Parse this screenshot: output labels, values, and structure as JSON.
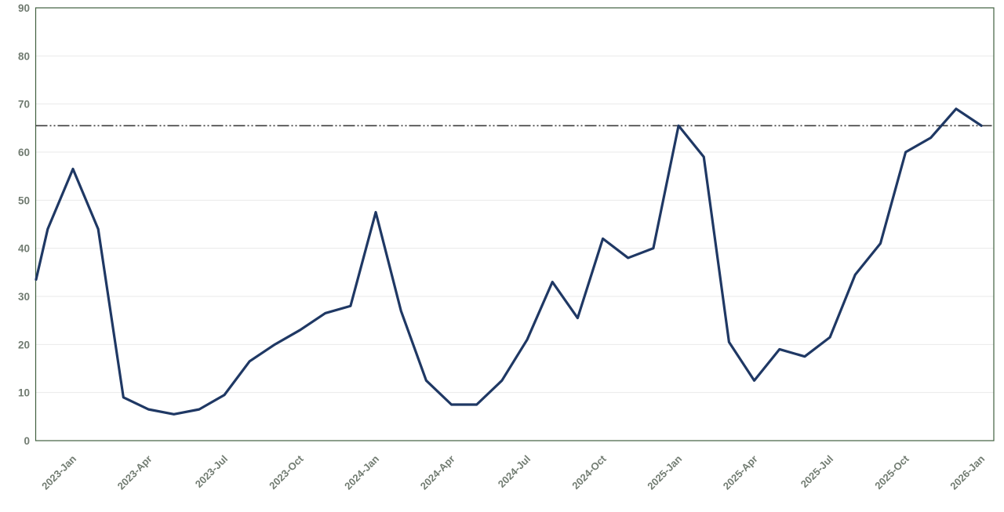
{
  "chart_data": {
    "type": "line",
    "title": "",
    "xlabel": "",
    "ylabel": "",
    "x": [
      "2022-Dec",
      "2023-Jan",
      "2023-Feb",
      "2023-Mar",
      "2023-Apr",
      "2023-May",
      "2023-Jun",
      "2023-Jul",
      "2023-Aug",
      "2023-Sep",
      "2023-Oct",
      "2023-Nov",
      "2023-Dec",
      "2024-Jan",
      "2024-Feb",
      "2024-Mar",
      "2024-Apr",
      "2024-May",
      "2024-Jun",
      "2024-Jul",
      "2024-Aug",
      "2024-Sep",
      "2024-Oct",
      "2024-Nov",
      "2024-Dec",
      "2025-Jan",
      "2025-Feb",
      "2025-Mar",
      "2025-Apr",
      "2025-May",
      "2025-Jun",
      "2025-Jul",
      "2025-Aug",
      "2025-Sep",
      "2025-Oct",
      "2025-Nov",
      "2025-Dec",
      "2026-Jan"
    ],
    "values": [
      44,
      56.5,
      44,
      9,
      6.5,
      5.5,
      6.5,
      9.5,
      16.5,
      20,
      23,
      26.5,
      28,
      47.5,
      27,
      12.5,
      7.5,
      7.5,
      12.5,
      21,
      33,
      25.5,
      42,
      38,
      40,
      65.5,
      59,
      20.5,
      12.5,
      19,
      17.5,
      21.5,
      34.5,
      41,
      60,
      63,
      69,
      65.5
    ],
    "clip_lead_value": 33.5,
    "reference_line": {
      "value": 65.5,
      "style": "dash-dot-dot"
    },
    "ylim": [
      0,
      90
    ],
    "y_ticks": [
      0,
      10,
      20,
      30,
      40,
      50,
      60,
      70,
      80,
      90
    ],
    "x_tick_labels": [
      "2023-Jan",
      "2023-Apr",
      "2023-Jul",
      "2023-Oct",
      "2024-Jan",
      "2024-Apr",
      "2024-Jul",
      "2024-Oct",
      "2025-Jan",
      "2025-Apr",
      "2025-Jul",
      "2025-Oct",
      "2026-Jan"
    ],
    "x_tick_step_months": 3,
    "grid": true,
    "legend": "none",
    "colors": {
      "series": "#1f3864",
      "plot_border": "#41603f",
      "gridline": "#e9e9e9",
      "reference_line": "#3c3c3c",
      "tick_label": "#717b71"
    }
  }
}
